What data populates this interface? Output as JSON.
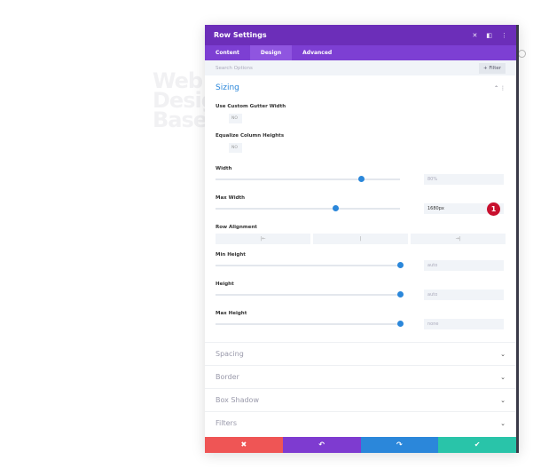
{
  "watermark": "Web Design Base",
  "header": {
    "title": "Row Settings"
  },
  "tabs": [
    {
      "label": "Content"
    },
    {
      "label": "Design",
      "active": true
    },
    {
      "label": "Advanced"
    }
  ],
  "search": {
    "placeholder": "Search Options",
    "filter_label": "+ Filter"
  },
  "sizing": {
    "title": "Sizing",
    "gutter": {
      "label": "Use Custom Gutter Width",
      "value": "NO"
    },
    "equalize": {
      "label": "Equalize Column Heights",
      "value": "NO"
    },
    "width": {
      "label": "Width",
      "value": "80%",
      "slider": 79
    },
    "max_width": {
      "label": "Max Width",
      "value": "1680px",
      "slider": 65,
      "badge": "1"
    },
    "row_alignment": {
      "label": "Row Alignment",
      "options": [
        "|←",
        "|",
        "→|"
      ]
    },
    "min_height": {
      "label": "Min Height",
      "value": "auto",
      "slider": 100
    },
    "height": {
      "label": "Height",
      "value": "auto",
      "slider": 100
    },
    "max_height": {
      "label": "Max Height",
      "value": "none",
      "slider": 100
    }
  },
  "sections": [
    "Spacing",
    "Border",
    "Box Shadow",
    "Filters"
  ],
  "footer": {
    "cancel": "✖",
    "undo": "↶",
    "redo": "↷",
    "save": "✔"
  },
  "colors": {
    "header": "#6c2eb9",
    "accent": "#2b87da",
    "cancel": "#ef5555",
    "undo": "#7e3bd0",
    "redo": "#2b87da",
    "save": "#29c4a9"
  }
}
